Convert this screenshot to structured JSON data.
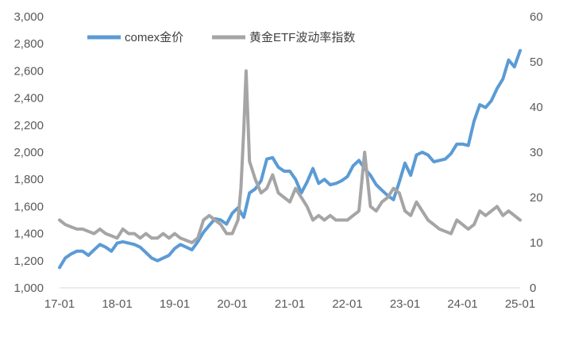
{
  "chart_data": {
    "type": "line",
    "legend_position": "top-left",
    "grid": false,
    "x_ticks": [
      "17-01",
      "18-01",
      "19-01",
      "20-01",
      "21-01",
      "22-01",
      "23-01",
      "24-01",
      "25-01"
    ],
    "y_left": {
      "min": 1000,
      "max": 3000,
      "ticks": [
        "1,000",
        "1,200",
        "1,400",
        "1,600",
        "1,800",
        "2,000",
        "2,200",
        "2,400",
        "2,600",
        "2,800",
        "3,000"
      ]
    },
    "y_right": {
      "min": 0,
      "max": 60,
      "ticks": [
        "0",
        "10",
        "20",
        "30",
        "40",
        "50",
        "60"
      ]
    },
    "series": [
      {
        "name": "comex金价",
        "axis": "left",
        "color": "#5B9BD5",
        "points": [
          [
            2017.0,
            1150
          ],
          [
            2017.1,
            1220
          ],
          [
            2017.2,
            1250
          ],
          [
            2017.3,
            1270
          ],
          [
            2017.4,
            1270
          ],
          [
            2017.5,
            1240
          ],
          [
            2017.6,
            1280
          ],
          [
            2017.7,
            1320
          ],
          [
            2017.8,
            1300
          ],
          [
            2017.9,
            1270
          ],
          [
            2018.0,
            1330
          ],
          [
            2018.1,
            1340
          ],
          [
            2018.2,
            1330
          ],
          [
            2018.3,
            1320
          ],
          [
            2018.4,
            1300
          ],
          [
            2018.5,
            1260
          ],
          [
            2018.6,
            1220
          ],
          [
            2018.7,
            1200
          ],
          [
            2018.8,
            1220
          ],
          [
            2018.9,
            1240
          ],
          [
            2019.0,
            1290
          ],
          [
            2019.1,
            1320
          ],
          [
            2019.2,
            1300
          ],
          [
            2019.3,
            1280
          ],
          [
            2019.4,
            1340
          ],
          [
            2019.5,
            1410
          ],
          [
            2019.6,
            1460
          ],
          [
            2019.7,
            1510
          ],
          [
            2019.8,
            1500
          ],
          [
            2019.9,
            1470
          ],
          [
            2020.0,
            1550
          ],
          [
            2020.1,
            1590
          ],
          [
            2020.2,
            1520
          ],
          [
            2020.3,
            1700
          ],
          [
            2020.4,
            1730
          ],
          [
            2020.5,
            1790
          ],
          [
            2020.6,
            1950
          ],
          [
            2020.7,
            1960
          ],
          [
            2020.8,
            1890
          ],
          [
            2020.9,
            1860
          ],
          [
            2021.0,
            1860
          ],
          [
            2021.1,
            1800
          ],
          [
            2021.2,
            1700
          ],
          [
            2021.3,
            1780
          ],
          [
            2021.4,
            1880
          ],
          [
            2021.5,
            1770
          ],
          [
            2021.6,
            1800
          ],
          [
            2021.7,
            1760
          ],
          [
            2021.8,
            1770
          ],
          [
            2021.9,
            1790
          ],
          [
            2022.0,
            1820
          ],
          [
            2022.1,
            1900
          ],
          [
            2022.2,
            1940
          ],
          [
            2022.3,
            1880
          ],
          [
            2022.4,
            1830
          ],
          [
            2022.5,
            1760
          ],
          [
            2022.6,
            1720
          ],
          [
            2022.7,
            1680
          ],
          [
            2022.8,
            1650
          ],
          [
            2022.9,
            1780
          ],
          [
            2023.0,
            1920
          ],
          [
            2023.1,
            1830
          ],
          [
            2023.2,
            1980
          ],
          [
            2023.3,
            2000
          ],
          [
            2023.4,
            1980
          ],
          [
            2023.5,
            1930
          ],
          [
            2023.6,
            1940
          ],
          [
            2023.7,
            1950
          ],
          [
            2023.8,
            1990
          ],
          [
            2023.9,
            2060
          ],
          [
            2024.0,
            2060
          ],
          [
            2024.1,
            2050
          ],
          [
            2024.2,
            2230
          ],
          [
            2024.3,
            2350
          ],
          [
            2024.4,
            2330
          ],
          [
            2024.5,
            2380
          ],
          [
            2024.6,
            2470
          ],
          [
            2024.7,
            2540
          ],
          [
            2024.8,
            2680
          ],
          [
            2024.9,
            2630
          ],
          [
            2025.0,
            2750
          ]
        ]
      },
      {
        "name": "黄金ETF波动率指数",
        "axis": "right",
        "color": "#A5A5A5",
        "points": [
          [
            2017.0,
            15
          ],
          [
            2017.1,
            14
          ],
          [
            2017.2,
            13.5
          ],
          [
            2017.3,
            13
          ],
          [
            2017.4,
            13
          ],
          [
            2017.5,
            12.5
          ],
          [
            2017.6,
            12
          ],
          [
            2017.7,
            13
          ],
          [
            2017.8,
            12
          ],
          [
            2017.9,
            11.5
          ],
          [
            2018.0,
            11
          ],
          [
            2018.1,
            13
          ],
          [
            2018.2,
            12
          ],
          [
            2018.3,
            12
          ],
          [
            2018.4,
            11
          ],
          [
            2018.5,
            12
          ],
          [
            2018.6,
            11
          ],
          [
            2018.7,
            11
          ],
          [
            2018.8,
            12
          ],
          [
            2018.9,
            11
          ],
          [
            2019.0,
            12
          ],
          [
            2019.1,
            11
          ],
          [
            2019.2,
            10.5
          ],
          [
            2019.3,
            10
          ],
          [
            2019.4,
            11
          ],
          [
            2019.5,
            15
          ],
          [
            2019.6,
            16
          ],
          [
            2019.7,
            15
          ],
          [
            2019.8,
            14
          ],
          [
            2019.9,
            12
          ],
          [
            2020.0,
            12
          ],
          [
            2020.1,
            15
          ],
          [
            2020.15,
            22
          ],
          [
            2020.2,
            35
          ],
          [
            2020.24,
            48
          ],
          [
            2020.3,
            28
          ],
          [
            2020.4,
            24
          ],
          [
            2020.5,
            21
          ],
          [
            2020.6,
            22
          ],
          [
            2020.7,
            25
          ],
          [
            2020.8,
            21
          ],
          [
            2020.9,
            20
          ],
          [
            2021.0,
            19
          ],
          [
            2021.1,
            22
          ],
          [
            2021.2,
            20
          ],
          [
            2021.3,
            18
          ],
          [
            2021.4,
            15
          ],
          [
            2021.5,
            16
          ],
          [
            2021.6,
            15
          ],
          [
            2021.7,
            16
          ],
          [
            2021.8,
            15
          ],
          [
            2021.9,
            15
          ],
          [
            2022.0,
            15
          ],
          [
            2022.1,
            16
          ],
          [
            2022.2,
            17
          ],
          [
            2022.3,
            30
          ],
          [
            2022.4,
            18
          ],
          [
            2022.5,
            17
          ],
          [
            2022.6,
            19
          ],
          [
            2022.7,
            20
          ],
          [
            2022.8,
            22
          ],
          [
            2022.9,
            21
          ],
          [
            2023.0,
            17
          ],
          [
            2023.1,
            16
          ],
          [
            2023.2,
            19
          ],
          [
            2023.3,
            17
          ],
          [
            2023.4,
            15
          ],
          [
            2023.5,
            14
          ],
          [
            2023.6,
            13
          ],
          [
            2023.7,
            12.5
          ],
          [
            2023.8,
            12
          ],
          [
            2023.9,
            15
          ],
          [
            2024.0,
            14
          ],
          [
            2024.1,
            13
          ],
          [
            2024.2,
            14
          ],
          [
            2024.3,
            17
          ],
          [
            2024.4,
            16
          ],
          [
            2024.5,
            17
          ],
          [
            2024.6,
            18
          ],
          [
            2024.7,
            16
          ],
          [
            2024.8,
            17
          ],
          [
            2024.9,
            16
          ],
          [
            2025.0,
            15
          ]
        ]
      }
    ]
  }
}
